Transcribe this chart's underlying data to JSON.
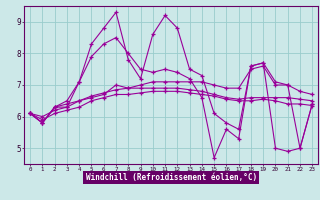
{
  "xlabel": "Windchill (Refroidissement éolien,°C)",
  "bg_color": "#cce8e8",
  "line_color": "#990099",
  "grid_color": "#99cccc",
  "xlabel_bg": "#660066",
  "xlabel_fg": "#ffffff",
  "xlim": [
    -0.5,
    23.5
  ],
  "ylim": [
    4.5,
    9.5
  ],
  "yticks": [
    5,
    6,
    7,
    8,
    9
  ],
  "xticks": [
    0,
    1,
    2,
    3,
    4,
    5,
    6,
    7,
    8,
    9,
    10,
    11,
    12,
    13,
    14,
    15,
    16,
    17,
    18,
    19,
    20,
    21,
    22,
    23
  ],
  "lines": [
    [
      6.1,
      5.8,
      6.3,
      6.3,
      7.1,
      8.3,
      8.8,
      9.3,
      7.8,
      7.2,
      8.6,
      9.2,
      8.8,
      7.5,
      7.3,
      6.1,
      5.8,
      5.6,
      7.6,
      7.7,
      7.1,
      7.0,
      5.0,
      6.4
    ],
    [
      6.1,
      5.8,
      6.3,
      6.5,
      7.1,
      7.9,
      8.3,
      8.5,
      8.0,
      7.5,
      7.4,
      7.5,
      7.4,
      7.2,
      6.6,
      4.7,
      5.6,
      5.3,
      7.6,
      7.7,
      5.0,
      4.9,
      5.0,
      6.4
    ],
    [
      6.1,
      5.8,
      6.3,
      6.4,
      6.5,
      6.6,
      6.7,
      7.0,
      6.9,
      7.0,
      7.1,
      7.1,
      7.1,
      7.1,
      7.1,
      7.0,
      6.9,
      6.9,
      7.5,
      7.6,
      7.0,
      7.0,
      6.8,
      6.7
    ],
    [
      6.1,
      5.9,
      6.1,
      6.2,
      6.3,
      6.5,
      6.6,
      6.7,
      6.7,
      6.75,
      6.8,
      6.8,
      6.8,
      6.75,
      6.7,
      6.65,
      6.55,
      6.5,
      6.5,
      6.55,
      6.5,
      6.4,
      6.4,
      6.35
    ],
    [
      6.1,
      6.0,
      6.2,
      6.3,
      6.5,
      6.65,
      6.75,
      6.85,
      6.9,
      6.9,
      6.9,
      6.9,
      6.9,
      6.85,
      6.8,
      6.7,
      6.6,
      6.55,
      6.6,
      6.6,
      6.6,
      6.6,
      6.55,
      6.5
    ]
  ]
}
